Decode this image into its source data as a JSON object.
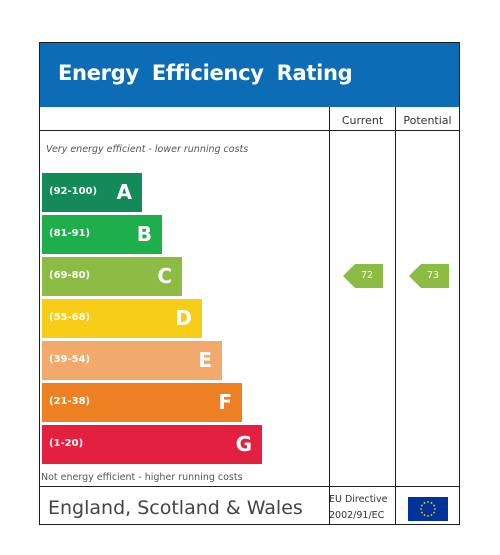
{
  "title": "Energy  Efficiency  Rating",
  "columns": {
    "current": "Current",
    "potential": "Potential"
  },
  "notes": {
    "top": "Very energy efficient - lower running costs",
    "bottom": "Not energy efficient - higher running costs"
  },
  "footer": {
    "country": "England, Scotland & Wales",
    "directive_line1": "EU Directive",
    "directive_line2": "2002/91/EC"
  },
  "colors": {
    "header": "#0c6db6",
    "A": "#138a57",
    "B": "#1fae4c",
    "C": "#8cbc43",
    "D": "#f7cd17",
    "E": "#f1aa6b",
    "F": "#ec8023",
    "G": "#e42040"
  },
  "chart_data": {
    "type": "bar",
    "categories": [
      "A",
      "B",
      "C",
      "D",
      "E",
      "F",
      "G"
    ],
    "ranges": [
      "(92-100)",
      "(81-91)",
      "(69-80)",
      "(55-68)",
      "(39-54)",
      "(21-38)",
      "(1-20)"
    ],
    "current": 72,
    "current_band": "C",
    "potential": 73,
    "potential_band": "C"
  }
}
